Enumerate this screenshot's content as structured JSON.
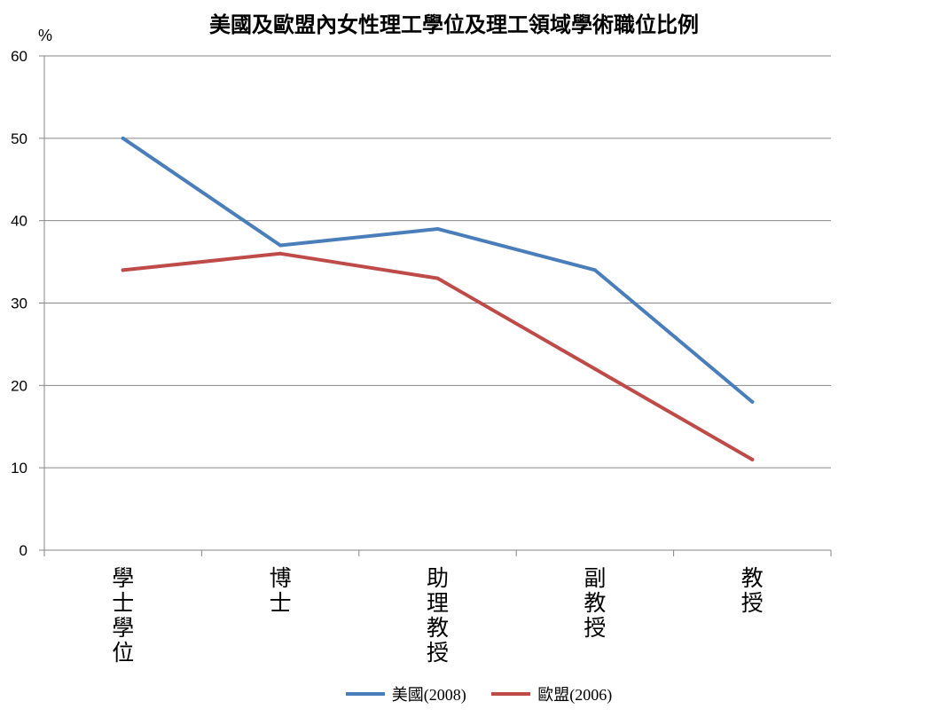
{
  "chart_data": {
    "type": "line",
    "title": "美國及歐盟內女性理工學位及理工領域學術職位比例",
    "ylabel": "%",
    "xlabel": "",
    "ylim": [
      0,
      60
    ],
    "yticks": [
      "0",
      "10",
      "20",
      "30",
      "40",
      "50",
      "60"
    ],
    "categories": [
      "學士學位",
      "博士",
      "助理教授",
      "副教授",
      "教授"
    ],
    "grid": true,
    "legend_position": "bottom",
    "series": [
      {
        "name": "美國(2008)",
        "values": [
          50,
          37,
          39,
          34,
          18
        ],
        "color": "#4a7ebb"
      },
      {
        "name": "歐盟(2006)",
        "values": [
          34,
          36,
          33,
          22,
          11
        ],
        "color": "#be4b48"
      }
    ]
  }
}
